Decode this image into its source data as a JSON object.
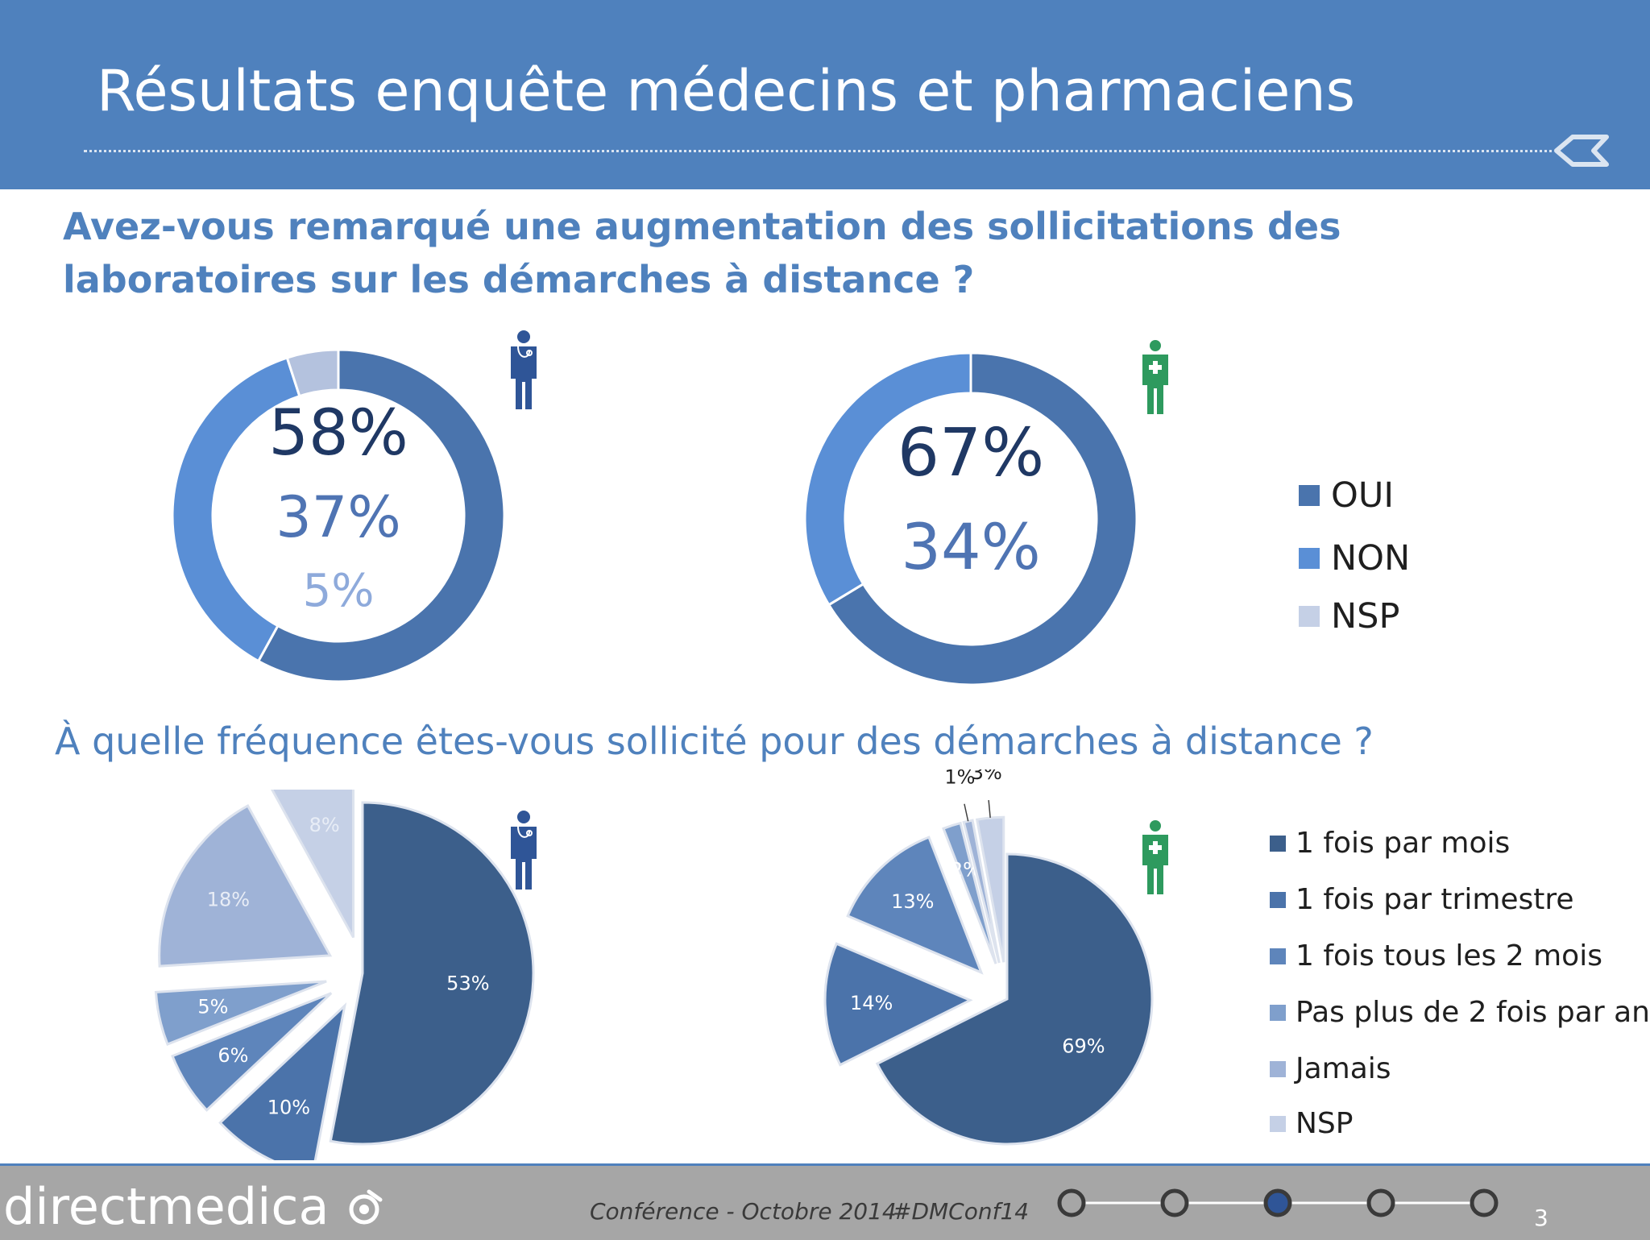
{
  "header": {
    "title": "Résultats enquête médecins et pharmaciens"
  },
  "question1": "Avez-vous remarqué une augmentation des sollicitations des laboratoires sur les démarches à distance ?",
  "question2": "À quelle fréquence êtes-vous sollicité pour des démarches à distance ?",
  "legend1": [
    "OUI",
    "NON",
    "NSP"
  ],
  "legend2": [
    "1 fois par mois",
    "1 fois par trimestre",
    "1 fois tous les 2 mois",
    "Pas plus de 2 fois par an",
    "Jamais",
    "NSP"
  ],
  "icons": {
    "doctor": "doctor-icon",
    "pharmacist": "pharmacist-icon"
  },
  "colors": {
    "header": "#4f81bd",
    "oui": "#4a74ad",
    "non": "#5a8fd6",
    "nsp": "#b4c2de",
    "pharmacist": "#2e9a5e"
  },
  "footer": {
    "logo": "directmedica",
    "conference": "Conférence - Octobre 2014",
    "hashtag": "#DMConf14",
    "page": "3",
    "progress_total": 5,
    "progress_current": 3
  },
  "chart_data": [
    {
      "type": "pie",
      "variant": "donut",
      "categories": [
        "OUI",
        "NON",
        "NSP"
      ],
      "values": [
        58,
        37,
        5
      ],
      "labels": [
        "58%",
        "37%",
        "5%"
      ],
      "colors": [
        "#4a74ad",
        "#5a8fd6",
        "#b4c2de"
      ]
    },
    {
      "type": "pie",
      "variant": "donut",
      "categories": [
        "OUI",
        "NON"
      ],
      "values": [
        67,
        34
      ],
      "labels": [
        "67%",
        "34%"
      ],
      "colors": [
        "#4a74ad",
        "#5a8fd6"
      ]
    },
    {
      "type": "pie",
      "variant": "exploded",
      "categories": [
        "1 fois par mois",
        "1 fois par trimestre",
        "1 fois tous les 2 mois",
        "Pas plus de 2 fois par an",
        "Jamais",
        "NSP"
      ],
      "values": [
        53,
        10,
        6,
        5,
        18,
        8
      ],
      "labels": [
        "53%",
        "10%",
        "6%",
        "5%",
        "18%",
        "8%"
      ],
      "colors": [
        "#3c5f8b",
        "#4b73aa",
        "#5e85bb",
        "#7f9fcc",
        "#9fb3d7",
        "#c5d0e6"
      ]
    },
    {
      "type": "pie",
      "variant": "exploded",
      "categories": [
        "1 fois par mois",
        "1 fois par trimestre",
        "1 fois tous les 2 mois",
        "Pas plus de 2 fois par an",
        "Jamais",
        "NSP"
      ],
      "values": [
        69,
        14,
        13,
        2,
        1,
        3
      ],
      "labels": [
        "69%",
        "14%",
        "13%",
        "2%",
        "1%",
        "3%"
      ],
      "colors": [
        "#3c5f8b",
        "#4b73aa",
        "#5e85bb",
        "#7f9fcc",
        "#9fb3d7",
        "#c5d0e6"
      ]
    }
  ]
}
